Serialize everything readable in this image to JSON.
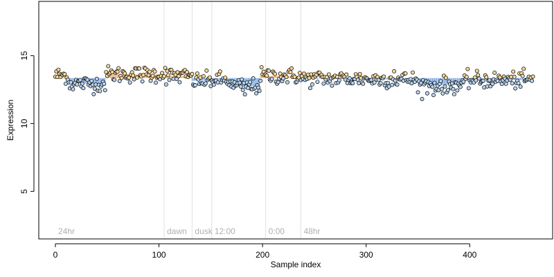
{
  "chart_data": {
    "type": "scatter",
    "xlabel": "Sample index",
    "ylabel": "Expression",
    "xlim": [
      -16,
      480
    ],
    "ylim": [
      1.5,
      19
    ],
    "xticks": [
      0,
      100,
      200,
      300,
      400
    ],
    "yticks": [
      5,
      10,
      15
    ],
    "baseline": 13.35,
    "n_samples": 462,
    "colors": {
      "high_bar": "#f4a460",
      "low_bar": "#7ba7e0",
      "point_fill_high": "#f5d79e",
      "point_fill_low": "#b8d4f0",
      "point_stroke": "#000000",
      "region_line": "#e0e0e0",
      "region_label": "#b0b0b0"
    },
    "regions": [
      {
        "label": "24hr",
        "x": 0,
        "line": false
      },
      {
        "label": "dawn",
        "x": 105,
        "line": true
      },
      {
        "label": "dusk",
        "x": 132,
        "line": true
      },
      {
        "label": "12:00",
        "x": 151,
        "line": true
      },
      {
        "label": "0:00",
        "x": 203,
        "line": true
      },
      {
        "label": "48hr",
        "x": 237,
        "line": true
      }
    ],
    "segments": [
      {
        "x0": 0,
        "x1": 12,
        "mean": 13.55
      },
      {
        "x0": 13,
        "x1": 48,
        "mean": 12.95
      },
      {
        "x0": 49,
        "x1": 104,
        "mean": 13.62
      },
      {
        "x0": 105,
        "x1": 131,
        "mean": 13.5
      },
      {
        "x0": 132,
        "x1": 150,
        "mean": 13.15
      },
      {
        "x0": 151,
        "x1": 168,
        "mean": 13.2
      },
      {
        "x0": 169,
        "x1": 197,
        "mean": 12.75
      },
      {
        "x0": 198,
        "x1": 236,
        "mean": 13.5
      },
      {
        "x0": 237,
        "x1": 300,
        "mean": 13.3
      },
      {
        "x0": 301,
        "x1": 350,
        "mean": 13.25
      },
      {
        "x0": 351,
        "x1": 372,
        "mean": 12.85
      },
      {
        "x0": 373,
        "x1": 395,
        "mean": 12.85
      },
      {
        "x0": 396,
        "x1": 461,
        "mean": 13.2
      }
    ],
    "noise_sd": 0.3,
    "outliers": [
      {
        "x": 106,
        "y": 14.1
      },
      {
        "x": 183,
        "y": 12.15
      },
      {
        "x": 365,
        "y": 12.1
      },
      {
        "x": 350,
        "y": 12.3
      },
      {
        "x": 327,
        "y": 13.85
      },
      {
        "x": 378,
        "y": 12.3
      }
    ]
  }
}
